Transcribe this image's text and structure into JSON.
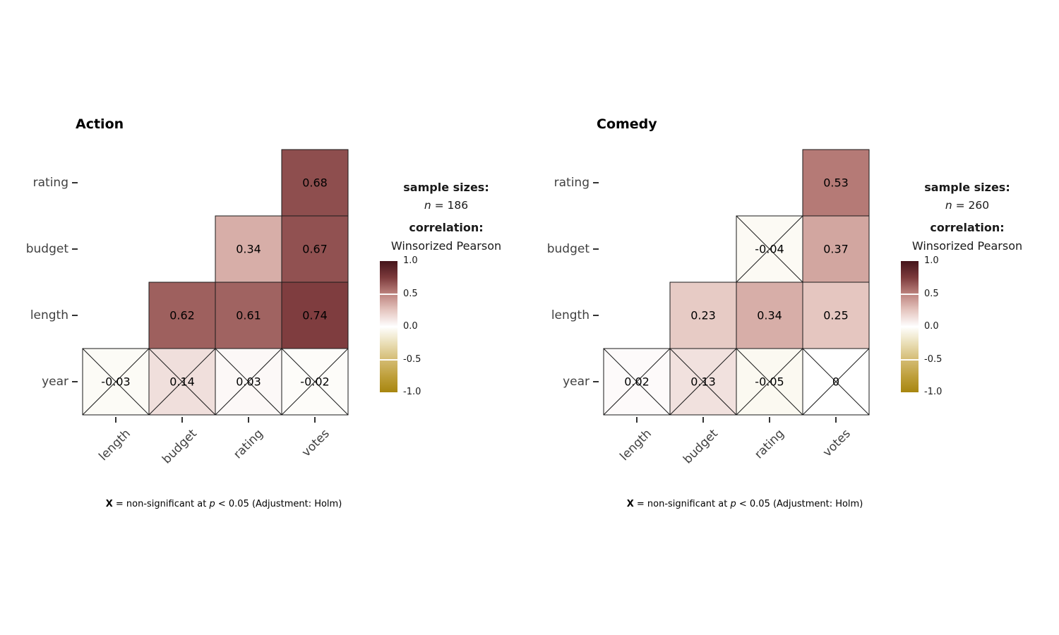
{
  "chart_data": [
    {
      "type": "heatmap",
      "title": "Action",
      "x_categories": [
        "length",
        "budget",
        "rating",
        "votes"
      ],
      "y_categories": [
        "rating",
        "budget",
        "length",
        "year"
      ],
      "cells": [
        {
          "row": "rating",
          "col": "votes",
          "value": 0.68,
          "label": "0.68",
          "significant": true
        },
        {
          "row": "budget",
          "col": "rating",
          "value": 0.34,
          "label": "0.34",
          "significant": true
        },
        {
          "row": "budget",
          "col": "votes",
          "value": 0.67,
          "label": "0.67",
          "significant": true
        },
        {
          "row": "length",
          "col": "budget",
          "value": 0.62,
          "label": "0.62",
          "significant": true
        },
        {
          "row": "length",
          "col": "rating",
          "value": 0.61,
          "label": "0.61",
          "significant": true
        },
        {
          "row": "length",
          "col": "votes",
          "value": 0.74,
          "label": "0.74",
          "significant": true
        },
        {
          "row": "year",
          "col": "length",
          "value": -0.03,
          "label": "-0.03",
          "significant": false
        },
        {
          "row": "year",
          "col": "budget",
          "value": 0.14,
          "label": "0.14",
          "significant": false
        },
        {
          "row": "year",
          "col": "rating",
          "value": 0.03,
          "label": "0.03",
          "significant": false
        },
        {
          "row": "year",
          "col": "votes",
          "value": -0.02,
          "label": "-0.02",
          "significant": false
        }
      ],
      "legend": {
        "sample_sizes_heading": "sample sizes:",
        "n_symbol": "n",
        "n_rest": " = 186",
        "correlation_heading": "correlation:",
        "method": "Winsorized Pearson",
        "colorbar_ticks": [
          "1.0",
          "0.5",
          "0.0",
          "-0.5",
          "-1.0"
        ]
      },
      "caption": {
        "x_symbol": "X",
        "mid": " = non-significant at ",
        "p_symbol": "p",
        "tail": " < 0.05 (Adjustment: Holm)"
      }
    },
    {
      "type": "heatmap",
      "title": "Comedy",
      "x_categories": [
        "length",
        "budget",
        "rating",
        "votes"
      ],
      "y_categories": [
        "rating",
        "budget",
        "length",
        "year"
      ],
      "cells": [
        {
          "row": "rating",
          "col": "votes",
          "value": 0.53,
          "label": "0.53",
          "significant": true
        },
        {
          "row": "budget",
          "col": "rating",
          "value": -0.04,
          "label": "-0.04",
          "significant": false
        },
        {
          "row": "budget",
          "col": "votes",
          "value": 0.37,
          "label": "0.37",
          "significant": true
        },
        {
          "row": "length",
          "col": "budget",
          "value": 0.23,
          "label": "0.23",
          "significant": true
        },
        {
          "row": "length",
          "col": "rating",
          "value": 0.34,
          "label": "0.34",
          "significant": true
        },
        {
          "row": "length",
          "col": "votes",
          "value": 0.25,
          "label": "0.25",
          "significant": true
        },
        {
          "row": "year",
          "col": "length",
          "value": 0.02,
          "label": "0.02",
          "significant": false
        },
        {
          "row": "year",
          "col": "budget",
          "value": 0.13,
          "label": "0.13",
          "significant": false
        },
        {
          "row": "year",
          "col": "rating",
          "value": -0.05,
          "label": "-0.05",
          "significant": false
        },
        {
          "row": "year",
          "col": "votes",
          "value": 0,
          "label": "0",
          "significant": false
        }
      ],
      "legend": {
        "sample_sizes_heading": "sample sizes:",
        "n_symbol": "n",
        "n_rest": " = 260",
        "correlation_heading": "correlation:",
        "method": "Winsorized Pearson",
        "colorbar_ticks": [
          "1.0",
          "0.5",
          "0.0",
          "-0.5",
          "-1.0"
        ]
      },
      "caption": {
        "x_symbol": "X",
        "mid": " = non-significant at ",
        "p_symbol": "p",
        "tail": " < 0.05 (Adjustment: Holm)"
      }
    }
  ],
  "scale": {
    "range": [
      -1,
      1
    ],
    "positive_stops": [
      "#ffffff",
      "#e5c6c0",
      "#bd837e",
      "#7c3a3c",
      "#45141a"
    ],
    "negative_stops": [
      "#ffffff",
      "#eadfb8",
      "#d4bc74",
      "#bfa03c",
      "#a8860f"
    ],
    "grid_stroke": "#1a1a1a",
    "x_mark_stroke": "#1a1a1a"
  }
}
